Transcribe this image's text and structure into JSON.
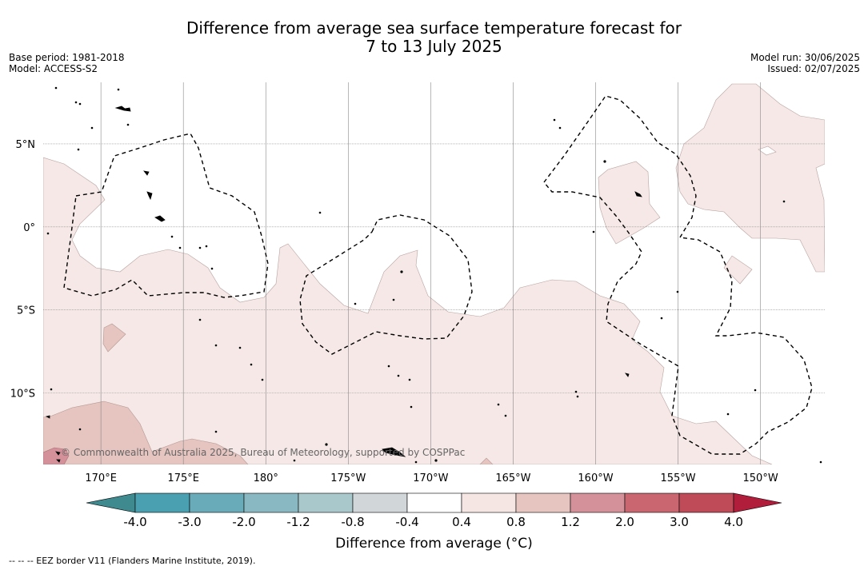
{
  "title": {
    "line1": "Difference from average sea surface temperature forecast for",
    "line2": "7 to 13 July 2025"
  },
  "meta": {
    "base_period": "Base period: 1981-2018",
    "model": "Model: ACCESS-S2",
    "model_run": "Model run: 30/06/2025",
    "issued": "Issued: 02/07/2025"
  },
  "map": {
    "lat_labels": [
      "5°N",
      "0°",
      "5°S",
      "10°S"
    ],
    "lat_values": [
      5,
      0,
      -5,
      -10
    ],
    "lon_labels": [
      "170°E",
      "175°E",
      "180°",
      "175°W",
      "170°W",
      "165°W",
      "160°W",
      "155°W",
      "150°W"
    ],
    "lon_values": [
      170,
      175,
      180,
      185,
      190,
      195,
      200,
      205,
      210
    ],
    "lon_range": [
      166.5,
      213.9
    ],
    "lat_range": [
      -14.3,
      8.7
    ],
    "copyright": "© Commonwealth of Australia 2025, Bureau of Meteorology, supported by COSPPac"
  },
  "colorbar": {
    "title": "Difference from average (°C)",
    "ticks": [
      "-4.0",
      "-3.0",
      "-2.0",
      "-1.2",
      "-0.8",
      "-0.4",
      "0.4",
      "0.8",
      "1.2",
      "2.0",
      "3.0",
      "4.0"
    ],
    "colors": [
      "#3f8a8f",
      "#4aa0b0",
      "#6aabb9",
      "#89b8c3",
      "#a9c8cc",
      "#d1d7d9",
      "#ffffff",
      "#f5e6e4",
      "#e6c4bf",
      "#d4919a",
      "#c9666f",
      "#c04b58",
      "#b01e3c"
    ]
  },
  "footer": {
    "eez_note": "--  --  -- EEZ border V11 (Flanders Marine Institute, 2019)."
  }
}
